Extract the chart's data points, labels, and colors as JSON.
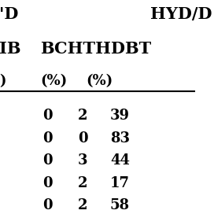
{
  "header_row1_left": "'D",
  "header_row1_right": "HYD/D",
  "header_row2_left": "IB",
  "header_row2_mid": "BCHTHDBT",
  "header_row3_left": ")",
  "header_row3_col2": "(%)",
  "header_row3_col3": "(%)",
  "rows": [
    [
      "0",
      "2",
      "39"
    ],
    [
      "0",
      "0",
      "83"
    ],
    [
      "0",
      "3",
      "44"
    ],
    [
      "0",
      "2",
      "17"
    ],
    [
      "0",
      "2",
      "58"
    ]
  ],
  "background_color": "#ffffff",
  "text_color": "#000000",
  "font_size": 13,
  "header_font_size": 13,
  "title_font_size": 15
}
